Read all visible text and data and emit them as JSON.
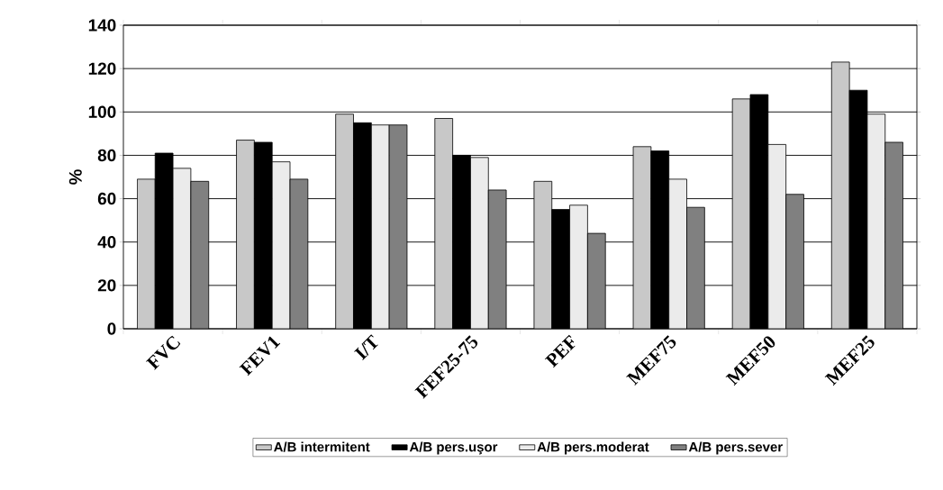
{
  "chart_data": {
    "type": "bar",
    "ylabel": "%",
    "categories": [
      "FVC",
      "FEV1",
      "I/T",
      "FEF25-75",
      "PEF",
      "MEF75",
      "MEF50",
      "MEF25"
    ],
    "series": [
      {
        "name": "A/B intermitent",
        "color": "#c8c8c8",
        "values": [
          69,
          87,
          99,
          97,
          68,
          84,
          106,
          123
        ]
      },
      {
        "name": "A/B pers.uşor",
        "color": "#000000",
        "values": [
          81,
          86,
          95,
          80,
          55,
          82,
          108,
          110
        ]
      },
      {
        "name": "A/B pers.moderat",
        "color": "#ebebeb",
        "values": [
          74,
          77,
          94,
          79,
          57,
          69,
          85,
          99
        ]
      },
      {
        "name": "A/B pers.sever",
        "color": "#808080",
        "values": [
          68,
          69,
          94,
          64,
          44,
          56,
          62,
          86
        ]
      }
    ],
    "ylim": [
      0,
      140
    ],
    "yticks": [
      0,
      20,
      40,
      60,
      80,
      100,
      120,
      140
    ],
    "grid": "y",
    "legend": "bottom"
  }
}
